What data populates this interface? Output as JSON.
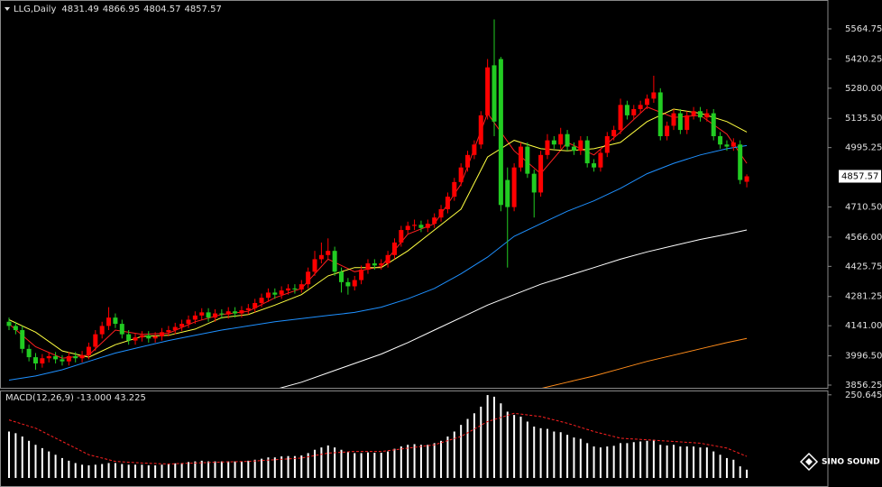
{
  "chart_data": [
    {
      "type": "candlestick",
      "title": "LLG,Daily",
      "ohlc_label": [
        4831.49,
        4866.95,
        4804.57,
        4857.57
      ],
      "open": [
        4160,
        4140,
        4120,
        4030,
        3990,
        3960,
        3985,
        3995,
        3980,
        3970,
        3995,
        3985,
        4000,
        4040,
        4100,
        4140,
        4180,
        4150,
        4100,
        4070,
        4085,
        4095,
        4080,
        4090,
        4110,
        4120,
        4135,
        4150,
        4170,
        4190,
        4205,
        4180,
        4200,
        4195,
        4210,
        4200,
        4215,
        4225,
        4250,
        4275,
        4300,
        4290,
        4310,
        4320,
        4315,
        4340,
        4400,
        4460,
        4480,
        4500,
        4400,
        4350,
        4330,
        4360,
        4410,
        4440,
        4430,
        4440,
        4480,
        4540,
        4600,
        4620,
        4625,
        4610,
        4630,
        4660,
        4700,
        4760,
        4830,
        4900,
        4960,
        5010,
        5150,
        5390,
        5420,
        4840,
        4710,
        4900,
        5000,
        4870,
        4780,
        4960,
        5030,
        5010,
        5060,
        5000,
        4980,
        5030,
        4920,
        4900,
        4970,
        5050,
        5080,
        5200,
        5150,
        5180,
        5200,
        5230,
        5260,
        5050,
        5100,
        5160,
        5080,
        5150,
        5170,
        5140,
        5160,
        5050,
        5010,
        5000,
        5010,
        4831.49
      ],
      "high": [
        4180,
        4160,
        4140,
        4050,
        4010,
        4005,
        4015,
        4015,
        4000,
        4015,
        4015,
        4020,
        4060,
        4120,
        4160,
        4230,
        4200,
        4170,
        4120,
        4105,
        4115,
        4115,
        4110,
        4130,
        4140,
        4155,
        4170,
        4190,
        4210,
        4225,
        4225,
        4220,
        4220,
        4230,
        4230,
        4235,
        4245,
        4270,
        4295,
        4320,
        4320,
        4330,
        4340,
        4340,
        4360,
        4420,
        4500,
        4540,
        4560,
        4520,
        4420,
        4370,
        4380,
        4430,
        4460,
        4460,
        4460,
        4500,
        4560,
        4620,
        4640,
        4650,
        4645,
        4650,
        4680,
        4720,
        4780,
        4850,
        4920,
        4980,
        5030,
        5170,
        5420,
        5610,
        5430,
        4900,
        4920,
        5020,
        5020,
        4890,
        4980,
        5060,
        5050,
        5090,
        5080,
        5020,
        5050,
        5050,
        4940,
        4990,
        5070,
        5100,
        5230,
        5220,
        5200,
        5220,
        5250,
        5340,
        5280,
        5120,
        5180,
        5180,
        5170,
        5190,
        5190,
        5180,
        5180,
        5070,
        5030,
        5040,
        5030,
        4866.95
      ],
      "low": [
        4120,
        4100,
        4010,
        3970,
        3930,
        3940,
        3965,
        3960,
        3950,
        3950,
        3965,
        3965,
        3980,
        4020,
        4080,
        4120,
        4130,
        4080,
        4050,
        4050,
        4065,
        4060,
        4060,
        4070,
        4090,
        4100,
        4115,
        4130,
        4150,
        4170,
        4160,
        4160,
        4175,
        4175,
        4180,
        4180,
        4195,
        4205,
        4230,
        4255,
        4270,
        4270,
        4290,
        4295,
        4300,
        4320,
        4380,
        4440,
        4460,
        4380,
        4300,
        4290,
        4310,
        4340,
        4390,
        4410,
        4410,
        4420,
        4460,
        4520,
        4580,
        4600,
        4590,
        4590,
        4610,
        4640,
        4680,
        4740,
        4810,
        4880,
        4940,
        4990,
        5130,
        5050,
        4690,
        4420,
        4690,
        4880,
        4850,
        4660,
        4760,
        4940,
        4990,
        4990,
        4980,
        4960,
        4960,
        4900,
        4880,
        4880,
        4950,
        5030,
        5060,
        5130,
        5130,
        5160,
        5180,
        5210,
        5030,
        5030,
        5080,
        5060,
        5060,
        5130,
        5120,
        5120,
        5030,
        4990,
        4980,
        4980,
        4820,
        4804.57
      ],
      "close": [
        4140,
        4120,
        4030,
        3990,
        3960,
        3985,
        3995,
        3980,
        3970,
        3995,
        3985,
        4000,
        4040,
        4100,
        4140,
        4180,
        4150,
        4100,
        4070,
        4085,
        4095,
        4080,
        4090,
        4110,
        4120,
        4135,
        4150,
        4170,
        4190,
        4205,
        4180,
        4200,
        4195,
        4210,
        4200,
        4215,
        4225,
        4250,
        4275,
        4300,
        4290,
        4310,
        4320,
        4315,
        4340,
        4400,
        4460,
        4480,
        4500,
        4400,
        4350,
        4330,
        4360,
        4410,
        4440,
        4430,
        4440,
        4480,
        4540,
        4600,
        4620,
        4625,
        4610,
        4630,
        4660,
        4700,
        4760,
        4830,
        4900,
        4960,
        5010,
        5150,
        5380,
        5120,
        4720,
        4710,
        4900,
        5000,
        4870,
        4780,
        4960,
        5030,
        5010,
        5060,
        5000,
        4980,
        5030,
        4920,
        4900,
        4970,
        5050,
        5080,
        5200,
        5150,
        5180,
        5200,
        5230,
        5260,
        5050,
        5100,
        5160,
        5080,
        5150,
        5170,
        5140,
        5160,
        5050,
        5010,
        5000,
        5020,
        4840,
        4857.57
      ],
      "up_color": "#ff0000",
      "down_color": "#22cc22",
      "series": [
        {
          "color": "#ff2020",
          "x": [
            0,
            4,
            8,
            12,
            16,
            20,
            24,
            28,
            32,
            36,
            40,
            44,
            48,
            52,
            56,
            60,
            64,
            68,
            72,
            76,
            80,
            84,
            88,
            92,
            96,
            100,
            104,
            108,
            111
          ],
          "values": [
            4150,
            4040,
            3985,
            4000,
            4120,
            4100,
            4105,
            4160,
            4195,
            4210,
            4275,
            4320,
            4460,
            4400,
            4425,
            4580,
            4630,
            4820,
            5160,
            4980,
            4870,
            5020,
            4960,
            5070,
            5190,
            5140,
            5150,
            5060,
            4920
          ]
        },
        {
          "color": "#ffff40",
          "x": [
            0,
            4,
            8,
            12,
            16,
            20,
            24,
            28,
            32,
            36,
            40,
            44,
            48,
            52,
            56,
            60,
            64,
            68,
            72,
            76,
            80,
            84,
            88,
            92,
            96,
            100,
            104,
            108,
            111
          ],
          "values": [
            4170,
            4110,
            4020,
            3990,
            4050,
            4090,
            4095,
            4125,
            4180,
            4195,
            4240,
            4290,
            4380,
            4420,
            4420,
            4500,
            4600,
            4700,
            4950,
            5030,
            4990,
            4980,
            4990,
            5020,
            5120,
            5180,
            5160,
            5120,
            5070
          ]
        },
        {
          "color": "#1e90ff",
          "x": [
            0,
            4,
            8,
            12,
            16,
            20,
            24,
            28,
            32,
            36,
            40,
            44,
            48,
            52,
            56,
            60,
            64,
            68,
            72,
            76,
            80,
            84,
            88,
            92,
            96,
            100,
            104,
            108,
            111
          ],
          "values": [
            3880,
            3900,
            3930,
            3970,
            4010,
            4040,
            4070,
            4095,
            4120,
            4140,
            4160,
            4175,
            4190,
            4205,
            4230,
            4270,
            4320,
            4390,
            4470,
            4570,
            4630,
            4690,
            4740,
            4800,
            4870,
            4920,
            4960,
            4990,
            5005
          ]
        },
        {
          "color": "#ffffff",
          "x": [
            0,
            4,
            8,
            12,
            16,
            20,
            24,
            28,
            32,
            36,
            40,
            44,
            48,
            52,
            56,
            60,
            64,
            68,
            72,
            76,
            80,
            84,
            88,
            92,
            96,
            100,
            104,
            108,
            111
          ],
          "values": [
            null,
            null,
            null,
            null,
            null,
            null,
            null,
            null,
            null,
            null,
            3835,
            3870,
            3915,
            3960,
            4005,
            4060,
            4120,
            4180,
            4240,
            4290,
            4340,
            4380,
            4420,
            4460,
            4495,
            4525,
            4555,
            4580,
            4600
          ]
        },
        {
          "color": "#ff8c1a",
          "x": [
            0,
            4,
            8,
            12,
            16,
            20,
            24,
            28,
            32,
            36,
            40,
            44,
            48,
            52,
            56,
            60,
            64,
            68,
            72,
            76,
            80,
            84,
            88,
            92,
            96,
            100,
            104,
            108,
            111
          ],
          "values": [
            null,
            null,
            null,
            null,
            null,
            null,
            null,
            null,
            null,
            null,
            null,
            null,
            null,
            null,
            null,
            null,
            null,
            null,
            null,
            null,
            3840,
            3870,
            3900,
            3935,
            3970,
            4000,
            4030,
            4060,
            4080
          ]
        }
      ],
      "last_price": 4857.57,
      "ylim": [
        3843.3,
        5694.5
      ],
      "yticks": [
        5564.75,
        5420.25,
        {
          "value": 5280,
          "label": "5280.00"
        },
        {
          "value": 5135.5,
          "label": "5135.50"
        },
        4995.25,
        {
          "value": 4710.5,
          "label": "4710.50"
        },
        {
          "value": 4566,
          "label": "4566.00"
        },
        4425.75,
        4281.25,
        {
          "value": 4141,
          "label": "4141.00"
        },
        {
          "value": 3996.5,
          "label": "3996.50"
        },
        3856.25
      ]
    },
    {
      "type": "bar",
      "title": "MACD(12,26,9) -13.000 43.225",
      "color": "#ffffff",
      "values": [
        140,
        135,
        125,
        112,
        100,
        90,
        80,
        70,
        60,
        52,
        45,
        40,
        38,
        40,
        42,
        45,
        45,
        42,
        40,
        40,
        40,
        38,
        38,
        40,
        42,
        44,
        45,
        48,
        50,
        52,
        50,
        50,
        50,
        50,
        50,
        50,
        52,
        55,
        58,
        62,
        62,
        65,
        66,
        66,
        68,
        75,
        85,
        92,
        98,
        92,
        85,
        78,
        75,
        75,
        77,
        76,
        76,
        80,
        88,
        95,
        100,
        102,
        100,
        100,
        105,
        112,
        125,
        140,
        160,
        178,
        195,
        215,
        250,
        245,
        225,
        200,
        190,
        185,
        170,
        155,
        150,
        148,
        140,
        138,
        130,
        122,
        118,
        105,
        95,
        92,
        95,
        97,
        105,
        105,
        108,
        110,
        112,
        115,
        100,
        98,
        100,
        95,
        95,
        95,
        92,
        92,
        80,
        70,
        60,
        55,
        35,
        25
      ],
      "series": [
        {
          "color": "#ff2020",
          "x": [
            0,
            4,
            8,
            12,
            16,
            20,
            24,
            28,
            32,
            36,
            40,
            44,
            48,
            52,
            56,
            60,
            64,
            68,
            72,
            76,
            80,
            84,
            88,
            92,
            96,
            100,
            104,
            108,
            111
          ],
          "values": [
            175,
            150,
            110,
            70,
            50,
            45,
            42,
            45,
            48,
            50,
            55,
            60,
            75,
            80,
            80,
            90,
            100,
            125,
            170,
            195,
            185,
            165,
            140,
            120,
            115,
            110,
            105,
            90,
            65
          ]
        }
      ],
      "ylim": [
        -21.8,
        261
      ],
      "yticks": [
        250.645
      ]
    }
  ],
  "watermark": "SINO SOUND"
}
